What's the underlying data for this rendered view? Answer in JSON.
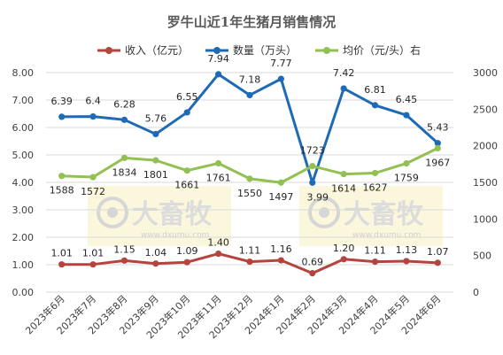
{
  "chart_data": {
    "type": "line",
    "title": "罗牛山近1年生猪月销售情况",
    "categories": [
      "2023年6月",
      "2023年7月",
      "2023年8月",
      "2023年9月",
      "2023年10月",
      "2023年11月",
      "2023年12月",
      "2024年1月",
      "2024年2月",
      "2024年3月",
      "2024年4月",
      "2024年5月",
      "2024年6月"
    ],
    "series": [
      {
        "name": "收入（亿元）",
        "axis": "left",
        "color": "#b5433e",
        "values": [
          1.01,
          1.01,
          1.15,
          1.04,
          1.09,
          1.4,
          1.11,
          1.16,
          0.69,
          1.2,
          1.11,
          1.13,
          1.07
        ],
        "labels": [
          "1.01",
          "1.01",
          "1.15",
          "1.04",
          "1.09",
          "1.40",
          "1.11",
          "1.16",
          "0.69",
          "1.20",
          "1.11",
          "1.13",
          "1.07"
        ]
      },
      {
        "name": "数量（万头）",
        "axis": "left",
        "color": "#1f6ab5",
        "values": [
          6.39,
          6.4,
          6.28,
          5.76,
          6.55,
          7.94,
          7.18,
          7.77,
          3.99,
          7.42,
          6.81,
          6.45,
          5.43
        ],
        "labels": [
          "6.39",
          "6.4",
          "6.28",
          "5.76",
          "6.55",
          "7.94",
          "7.18",
          "7.77",
          "3.99",
          "7.42",
          "6.81",
          "6.45",
          "5.43"
        ]
      },
      {
        "name": "均价（元/头）右",
        "axis": "right",
        "color": "#92c052",
        "values": [
          1588,
          1572,
          1834,
          1801,
          1661,
          1761,
          1550,
          1497,
          1723,
          1614,
          1627,
          1759,
          1967
        ],
        "labels": [
          "1588",
          "1572",
          "1834",
          "1801",
          "1661",
          "1761",
          "1550",
          "1497",
          "1723",
          "1614",
          "1627",
          "1759",
          "1967"
        ]
      }
    ],
    "y_left": {
      "min": 0,
      "max": 8,
      "step": 1,
      "ticks": [
        "0.00",
        "1.00",
        "2.00",
        "3.00",
        "4.00",
        "5.00",
        "6.00",
        "7.00",
        "8.00"
      ]
    },
    "y_right": {
      "min": 0,
      "max": 3000,
      "step": 500,
      "ticks": [
        "0",
        "500",
        "1000",
        "1500",
        "2000",
        "2500",
        "3000"
      ]
    },
    "legend_position": "top",
    "grid": "horizontal",
    "watermark": {
      "text": "大畜牧",
      "sub": "www.dxumu.com"
    }
  }
}
